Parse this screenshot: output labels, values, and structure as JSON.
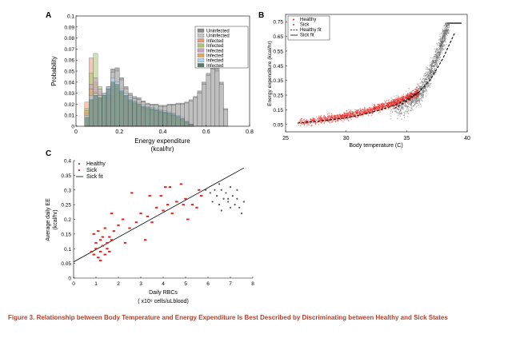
{
  "caption": "Figure 3. Relationship between Body Temperature and Energy Expenditure Is Best Described by Discriminating between Healthy and Sick States",
  "chart_data": [
    {
      "panel": "A",
      "type": "bar",
      "xlabel": "Energy expenditure",
      "xlabel2": "(kcal/hr)",
      "ylabel": "Probability",
      "xlim": [
        0,
        0.8
      ],
      "ylim": [
        0,
        0.1
      ],
      "xticks": [
        "0",
        "0.2",
        "0.4",
        "0.6",
        "0.8"
      ],
      "yticks": [
        "0",
        "0.01",
        "0.02",
        "0.03",
        "0.04",
        "0.05",
        "0.06",
        "0.07",
        "0.08",
        "0.09",
        "0.1"
      ],
      "bin_width": 0.02,
      "bins": [
        0.05,
        0.07,
        0.09,
        0.11,
        0.13,
        0.15,
        0.17,
        0.19,
        0.21,
        0.23,
        0.25,
        0.27,
        0.29,
        0.31,
        0.33,
        0.35,
        0.37,
        0.39,
        0.41,
        0.43,
        0.45,
        0.47,
        0.49,
        0.51,
        0.53,
        0.55,
        0.57,
        0.59,
        0.61,
        0.63,
        0.65,
        0.67,
        0.69
      ],
      "legend": [
        "Uninfected",
        "Uninfected",
        "Infected",
        "Infected",
        "Infected",
        "Infected",
        "Infected",
        "Infected"
      ],
      "legend_position": "top-right",
      "series": [
        {
          "name": "Uninfected",
          "color": "#8c8c8c",
          "values": [
            0.006,
            0.022,
            0.026,
            0.024,
            0.03,
            0.036,
            0.052,
            0.053,
            0.044,
            0.036,
            0.03,
            0.027,
            0.026,
            0.023,
            0.021,
            0.02,
            0.02,
            0.019,
            0.019,
            0.02,
            0.02,
            0.021,
            0.021,
            0.022,
            0.024,
            0.027,
            0.032,
            0.04,
            0.048,
            0.055,
            0.053,
            0.04,
            0.016
          ]
        },
        {
          "name": "Uninfected",
          "color": "#c8c8c8",
          "values": [
            0.006,
            0.02,
            0.024,
            0.022,
            0.028,
            0.034,
            0.049,
            0.05,
            0.042,
            0.034,
            0.028,
            0.025,
            0.024,
            0.022,
            0.02,
            0.019,
            0.019,
            0.018,
            0.018,
            0.019,
            0.019,
            0.02,
            0.02,
            0.021,
            0.023,
            0.026,
            0.03,
            0.038,
            0.046,
            0.052,
            0.05,
            0.038,
            0.015
          ]
        },
        {
          "name": "Infected",
          "color": "#e89a7a",
          "values": [
            0.022,
            0.062,
            0.04,
            0.03,
            0.024,
            0.024,
            0.028,
            0.03,
            0.027,
            0.024,
            0.021,
            0.02,
            0.018,
            0.017,
            0.016,
            0.015,
            0.014,
            0.013,
            0.012,
            0.011,
            0.01,
            0.008,
            0.006,
            0.004,
            0.002,
            0,
            0,
            0,
            0,
            0,
            0,
            0,
            0
          ]
        },
        {
          "name": "Infected",
          "color": "#a8c870",
          "values": [
            0.016,
            0.048,
            0.066,
            0.036,
            0.028,
            0.025,
            0.028,
            0.03,
            0.027,
            0.023,
            0.02,
            0.019,
            0.018,
            0.016,
            0.015,
            0.014,
            0.013,
            0.012,
            0.011,
            0.01,
            0.009,
            0.007,
            0.005,
            0.003,
            0.001,
            0,
            0,
            0,
            0,
            0,
            0,
            0,
            0
          ]
        },
        {
          "name": "Infected",
          "color": "#c8a0c8",
          "values": [
            0.012,
            0.038,
            0.044,
            0.034,
            0.026,
            0.026,
            0.032,
            0.034,
            0.03,
            0.026,
            0.022,
            0.02,
            0.018,
            0.016,
            0.015,
            0.014,
            0.013,
            0.012,
            0.011,
            0.01,
            0.009,
            0.007,
            0.005,
            0.003,
            0.001,
            0,
            0,
            0,
            0,
            0,
            0,
            0,
            0
          ]
        },
        {
          "name": "Infected",
          "color": "#e0a860",
          "values": [
            0.014,
            0.034,
            0.03,
            0.028,
            0.026,
            0.028,
            0.034,
            0.036,
            0.032,
            0.027,
            0.023,
            0.021,
            0.019,
            0.017,
            0.016,
            0.015,
            0.014,
            0.013,
            0.012,
            0.011,
            0.01,
            0.008,
            0.006,
            0.004,
            0.002,
            0,
            0,
            0,
            0,
            0,
            0,
            0,
            0
          ]
        },
        {
          "name": "Infected",
          "color": "#a8d8f0",
          "values": [
            0.01,
            0.028,
            0.03,
            0.028,
            0.03,
            0.036,
            0.044,
            0.04,
            0.034,
            0.03,
            0.026,
            0.023,
            0.021,
            0.019,
            0.018,
            0.017,
            0.016,
            0.015,
            0.014,
            0.013,
            0.012,
            0.01,
            0.008,
            0.005,
            0.002,
            0,
            0,
            0,
            0,
            0,
            0,
            0,
            0
          ]
        },
        {
          "name": "Infected",
          "color": "#5a7a6a",
          "values": [
            0.008,
            0.024,
            0.028,
            0.026,
            0.028,
            0.034,
            0.04,
            0.038,
            0.032,
            0.028,
            0.024,
            0.022,
            0.02,
            0.018,
            0.017,
            0.016,
            0.015,
            0.014,
            0.013,
            0.012,
            0.011,
            0.009,
            0.007,
            0.004,
            0.002,
            0,
            0,
            0,
            0,
            0,
            0,
            0,
            0
          ]
        }
      ]
    },
    {
      "panel": "B",
      "type": "scatter",
      "xlabel": "Body temperature (C)",
      "ylabel": "Energy expenditure (kcal/hr)",
      "xlim": [
        25,
        40
      ],
      "ylim": [
        0,
        0.8
      ],
      "xticks": [
        "25",
        "30",
        "35",
        "40"
      ],
      "yticks": [
        "0.05",
        "0.15",
        "0.25",
        "0.35",
        "0.45",
        "0.55",
        "0.65",
        "0.75"
      ],
      "legend": [
        "Healthy",
        "Sick",
        "Healthy fit",
        "Sick fit"
      ],
      "legend_position": "top-left",
      "series": [
        {
          "name": "Healthy",
          "color": "#e8201c",
          "x_range": [
            26,
            36
          ],
          "trend": "exponential",
          "points": 1400
        },
        {
          "name": "Sick",
          "color": "#666666",
          "x_range": [
            33,
            39.5
          ],
          "trend": "steep",
          "points": 1800
        },
        {
          "name": "Healthy fit",
          "color": "#000000",
          "style": "dashed",
          "x": [
            26,
            28,
            30,
            32,
            34,
            35,
            36
          ],
          "y": [
            0.06,
            0.075,
            0.095,
            0.13,
            0.18,
            0.22,
            0.27
          ]
        },
        {
          "name": "Sick fit",
          "color": "#000000",
          "style": "dashed",
          "x": [
            34,
            35,
            36,
            37,
            38,
            39
          ],
          "y": [
            0.16,
            0.21,
            0.27,
            0.36,
            0.5,
            0.68
          ]
        }
      ]
    },
    {
      "panel": "C",
      "type": "scatter",
      "xlabel": "Daily RBCs",
      "xlabel2": "( x10⁶ cells/uLblood)",
      "ylabel": "Average daily EE",
      "ylabel2": "(kcal/hr)",
      "xlim": [
        0,
        8
      ],
      "ylim": [
        0,
        0.4
      ],
      "xticks": [
        "0",
        "1",
        "2",
        "3",
        "4",
        "5",
        "6",
        "7",
        "8"
      ],
      "yticks": [
        "0",
        "0.05",
        "0.1",
        "0.15",
        "0.2",
        "0.25",
        "0.3",
        "0.35",
        "0.4"
      ],
      "legend": [
        "Healthy",
        "Sick",
        "Sick fit"
      ],
      "legend_position": "top-left",
      "series": [
        {
          "name": "Healthy",
          "color": "#555555",
          "x": [
            6.1,
            6.3,
            6.4,
            6.5,
            6.6,
            6.7,
            6.8,
            6.9,
            7.0,
            7.1,
            7.2,
            7.3,
            7.4,
            7.5,
            6.2,
            6.6,
            7.0,
            7.3,
            6.5,
            6.9,
            7.6,
            5.9
          ],
          "y": [
            0.29,
            0.3,
            0.28,
            0.25,
            0.3,
            0.27,
            0.29,
            0.26,
            0.31,
            0.28,
            0.25,
            0.27,
            0.24,
            0.22,
            0.26,
            0.23,
            0.24,
            0.3,
            0.32,
            0.27,
            0.26,
            0.3
          ]
        },
        {
          "name": "Sick",
          "color": "#e8201c",
          "x": [
            0.8,
            0.9,
            1.0,
            1.0,
            1.1,
            1.2,
            1.2,
            1.3,
            1.3,
            1.4,
            1.5,
            1.5,
            1.6,
            1.7,
            0.9,
            1.1,
            1.4,
            1.6,
            1.8,
            2.0,
            2.2,
            2.5,
            2.8,
            3.0,
            3.3,
            3.5,
            3.7,
            4.0,
            4.2,
            4.4,
            4.6,
            5.0,
            5.3,
            5.5,
            5.7,
            2.6,
            3.2,
            3.9,
            4.3,
            4.8,
            5.1,
            5.6,
            1.2,
            1.7,
            2.3,
            4.1,
            3.4,
            4.9
          ],
          "y": [
            0.09,
            0.08,
            0.12,
            0.1,
            0.07,
            0.13,
            0.09,
            0.11,
            0.14,
            0.08,
            0.1,
            0.12,
            0.09,
            0.13,
            0.15,
            0.16,
            0.17,
            0.14,
            0.16,
            0.18,
            0.2,
            0.17,
            0.19,
            0.22,
            0.21,
            0.19,
            0.24,
            0.23,
            0.25,
            0.22,
            0.26,
            0.27,
            0.25,
            0.24,
            0.28,
            0.29,
            0.13,
            0.28,
            0.31,
            0.32,
            0.2,
            0.3,
            0.06,
            0.22,
            0.12,
            0.31,
            0.28,
            0.25
          ]
        },
        {
          "name": "Sick fit",
          "color": "#000000",
          "style": "solid",
          "x": [
            0,
            7.6
          ],
          "y": [
            0.055,
            0.375
          ]
        }
      ]
    }
  ]
}
